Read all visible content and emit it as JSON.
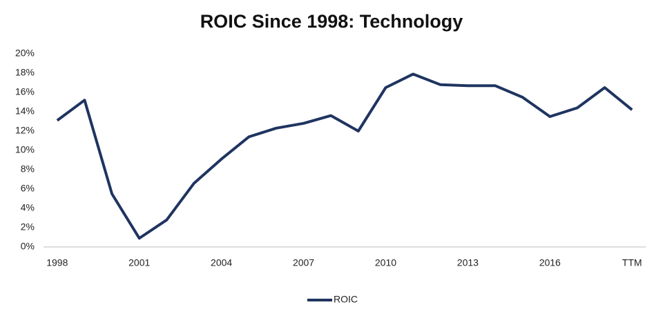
{
  "chart_data": {
    "type": "line",
    "title": "ROIC Since 1998: Technology",
    "categories": [
      "1998",
      null,
      null,
      "2001",
      null,
      null,
      "2004",
      null,
      null,
      "2007",
      null,
      null,
      "2010",
      null,
      null,
      "2013",
      null,
      null,
      "2016",
      null,
      null,
      "TTM"
    ],
    "series": [
      {
        "name": "ROIC",
        "color": "#1f3460",
        "values": [
          13.1,
          15.2,
          5.5,
          0.9,
          2.8,
          6.6,
          9.1,
          11.4,
          12.3,
          12.8,
          13.6,
          12.0,
          16.5,
          17.9,
          16.8,
          16.7,
          16.7,
          15.5,
          13.5,
          14.4,
          16.5,
          14.2
        ]
      }
    ],
    "ylim": [
      0,
      20
    ],
    "yticks": [
      {
        "value": 0,
        "label": "0%"
      },
      {
        "value": 2,
        "label": "2%"
      },
      {
        "value": 4,
        "label": "4%"
      },
      {
        "value": 6,
        "label": "6%"
      },
      {
        "value": 8,
        "label": "8%"
      },
      {
        "value": 10,
        "label": "10%"
      },
      {
        "value": 12,
        "label": "12%"
      },
      {
        "value": 14,
        "label": "14%"
      },
      {
        "value": 16,
        "label": "16%"
      },
      {
        "value": 18,
        "label": "18%"
      },
      {
        "value": 20,
        "label": "20%"
      }
    ],
    "legend": "bottom"
  }
}
